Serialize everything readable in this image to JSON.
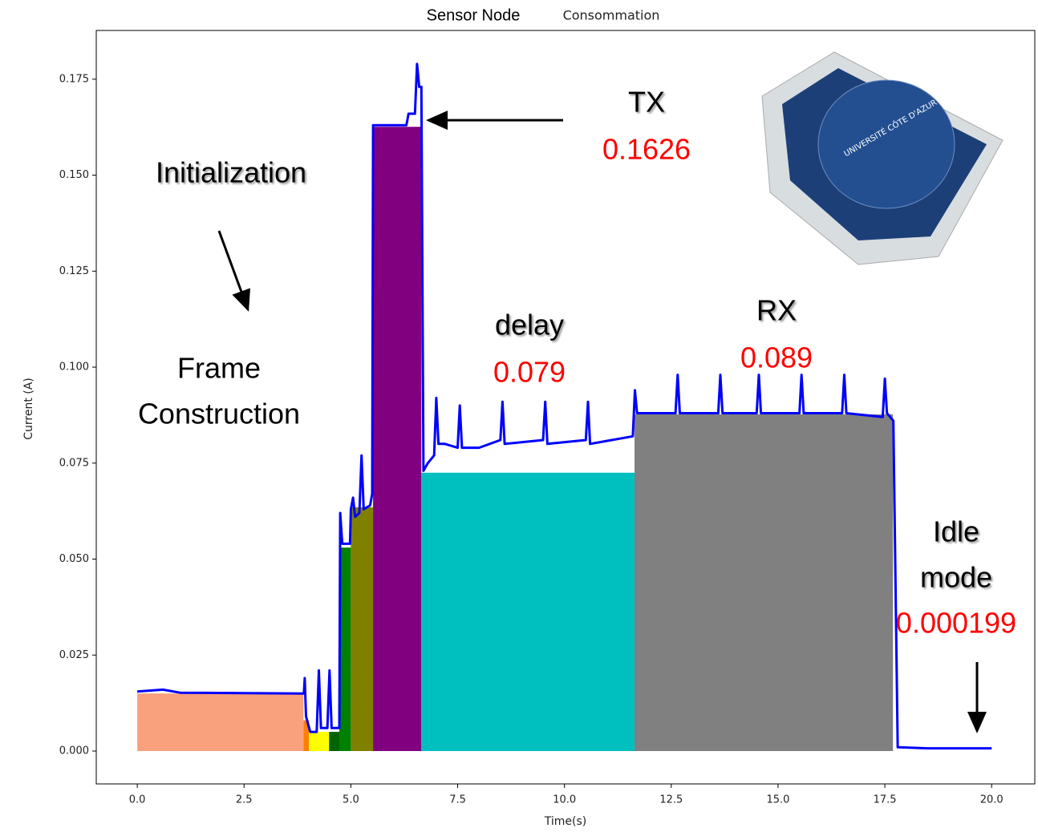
{
  "chart_data": {
    "type": "line",
    "title": [
      "Sensor Node",
      "Consommation"
    ],
    "x_label": "Time(s)",
    "y_label": "Current (A)",
    "xlim": [
      -0.96,
      21.01
    ],
    "ylim": [
      -0.00856,
      0.1877
    ],
    "xticks": [
      {
        "value": 0,
        "label": "0.0"
      },
      2.5,
      {
        "value": 5,
        "label": "5.0"
      },
      7.5,
      {
        "value": 10,
        "label": "10.0"
      },
      12.5,
      {
        "value": 15,
        "label": "15.0"
      },
      17.5,
      {
        "value": 20,
        "label": "20.0"
      }
    ],
    "yticks": [
      {
        "value": 0,
        "label": "0.000"
      },
      {
        "value": 0.025,
        "label": "0.025"
      },
      {
        "value": 0.05,
        "label": "0.050"
      },
      {
        "value": 0.075,
        "label": "0.075"
      },
      {
        "value": 0.1,
        "label": "0.100"
      },
      {
        "value": 0.125,
        "label": "0.125"
      },
      {
        "value": 0.15,
        "label": "0.150"
      },
      {
        "value": 0.175,
        "label": "0.175"
      }
    ],
    "regions": [
      {
        "x": [
          0,
          3.89
        ],
        "value": 0.015,
        "color": "#f9a07d"
      },
      {
        "x": [
          3.89,
          4.02
        ],
        "value": 0.008,
        "color": "#ff8000"
      },
      {
        "x": [
          4.02,
          4.49
        ],
        "value": 0.005,
        "color": "#ffff00"
      },
      {
        "x": [
          4.49,
          4.73
        ],
        "value": 0.005,
        "color": "#006400"
      },
      {
        "x": [
          4.73,
          5.0
        ],
        "value": 0.053,
        "color": "#008000"
      },
      {
        "x": [
          5.0,
          5.52
        ],
        "value": 0.0635,
        "color": "#808000"
      },
      {
        "x": [
          5.52,
          6.65
        ],
        "value": 0.1626,
        "color": "#800080"
      },
      {
        "x": [
          6.65,
          11.64
        ],
        "value": 0.0725,
        "color": "#00bfbf"
      },
      {
        "x": [
          11.64,
          17.69
        ],
        "value": 0.0877,
        "color": "#808080"
      }
    ],
    "series": [
      {
        "color": "#0000ff",
        "x": [
          0,
          0.6,
          1,
          3.9,
          3.92,
          3.95,
          4.0,
          4.05,
          4.2,
          4.25,
          4.3,
          4.45,
          4.5,
          4.55,
          4.73,
          4.75,
          4.8,
          4.98,
          5.0,
          5.05,
          5.1,
          5.2,
          5.25,
          5.3,
          5.45,
          5.5,
          5.52,
          6.3,
          6.35,
          6.5,
          6.55,
          6.6,
          6.65,
          6.7,
          6.8,
          6.95,
          7.0,
          7.05,
          7.2,
          7.5,
          7.55,
          7.6,
          8.0,
          8.5,
          8.55,
          8.6,
          9.5,
          9.55,
          9.6,
          10.5,
          10.55,
          10.6,
          11.6,
          11.65,
          11.7,
          12.6,
          12.65,
          12.7,
          13.6,
          13.65,
          13.7,
          14.5,
          14.55,
          14.6,
          15.5,
          15.55,
          15.6,
          16.5,
          16.55,
          16.6,
          17.45,
          17.5,
          17.55,
          17.7,
          17.8,
          18.5,
          20
        ],
        "values": [
          0.0155,
          0.016,
          0.0152,
          0.015,
          0.019,
          0.009,
          0.007,
          0.005,
          0.005,
          0.021,
          0.006,
          0.006,
          0.021,
          0.006,
          0.006,
          0.062,
          0.054,
          0.054,
          0.063,
          0.066,
          0.061,
          0.062,
          0.077,
          0.063,
          0.064,
          0.067,
          0.163,
          0.163,
          0.166,
          0.166,
          0.179,
          0.173,
          0.173,
          0.073,
          0.075,
          0.077,
          0.092,
          0.08,
          0.08,
          0.079,
          0.09,
          0.079,
          0.079,
          0.081,
          0.091,
          0.08,
          0.081,
          0.091,
          0.08,
          0.081,
          0.091,
          0.08,
          0.082,
          0.094,
          0.088,
          0.088,
          0.098,
          0.088,
          0.088,
          0.098,
          0.088,
          0.088,
          0.098,
          0.088,
          0.088,
          0.098,
          0.088,
          0.088,
          0.098,
          0.088,
          0.087,
          0.097,
          0.088,
          0.086,
          0.001,
          0.0007,
          0.0007
        ]
      }
    ],
    "annotations": [
      {
        "lines": [
          "Initialization"
        ]
      },
      {
        "lines": [
          "Frame",
          "Construction"
        ]
      },
      {
        "lines": [
          "TX"
        ],
        "value": "0.1626"
      },
      {
        "lines": [
          "delay"
        ],
        "value": "0.079"
      },
      {
        "lines": [
          "RX"
        ],
        "value": "0.089"
      },
      {
        "lines": [
          "Idle",
          "mode"
        ],
        "value": "0.000199"
      }
    ],
    "image_text": "UNIVERSITÉ CÔTE D'AZUR"
  }
}
